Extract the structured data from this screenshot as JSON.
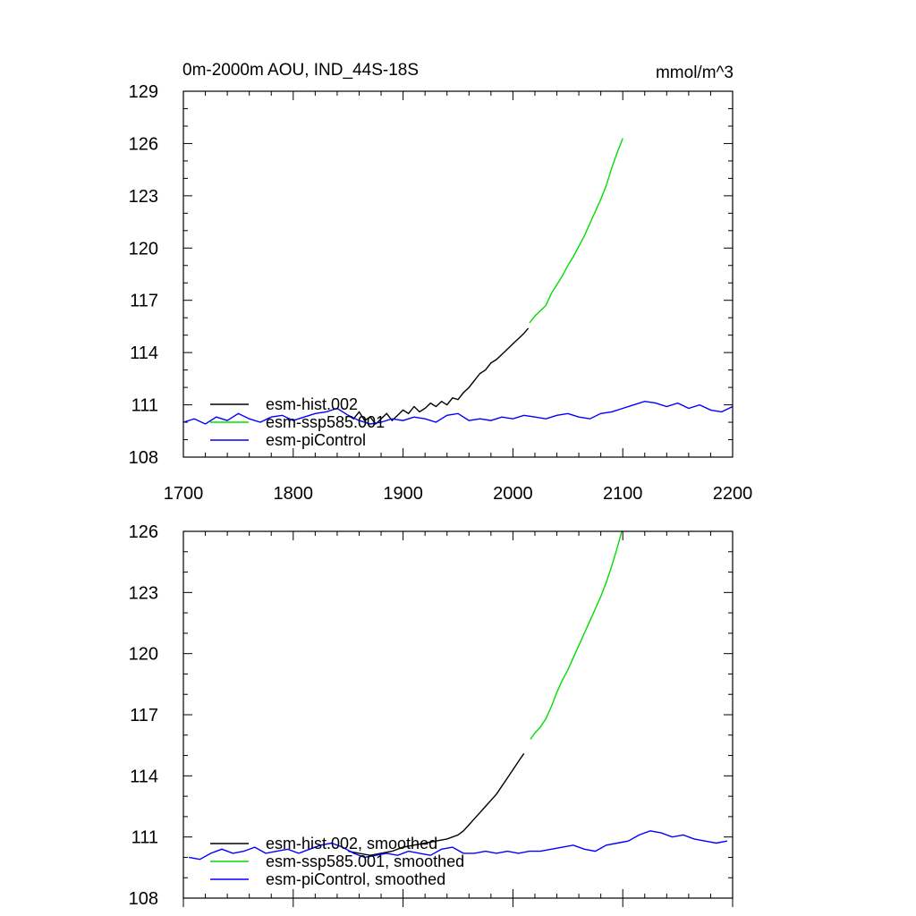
{
  "chart_data": [
    {
      "type": "line",
      "title": "0m-2000m AOU, IND_44S-18S",
      "units": "mmol/m^3",
      "xlim": [
        1700,
        2200
      ],
      "ylim": [
        108,
        129
      ],
      "xticks": [
        "1700",
        "1800",
        "1900",
        "2000",
        "2100",
        "2200"
      ],
      "yticks": [
        "108",
        "111",
        "114",
        "117",
        "120",
        "123",
        "126",
        "129"
      ],
      "legend_position": "lower-left",
      "series": [
        {
          "name": "esm-hist.002",
          "color": "#000000",
          "x": [
            1850,
            1855,
            1860,
            1865,
            1870,
            1875,
            1880,
            1885,
            1890,
            1895,
            1900,
            1905,
            1910,
            1915,
            1920,
            1925,
            1930,
            1935,
            1940,
            1945,
            1950,
            1955,
            1960,
            1965,
            1970,
            1975,
            1980,
            1985,
            1990,
            1995,
            2000,
            2005,
            2010,
            2014
          ],
          "y": [
            110.4,
            110.2,
            110.6,
            110.1,
            110.3,
            109.9,
            110.2,
            110.5,
            110.1,
            110.4,
            110.7,
            110.5,
            110.9,
            110.6,
            110.8,
            111.1,
            110.9,
            111.2,
            111.0,
            111.4,
            111.3,
            111.7,
            112.0,
            112.4,
            112.8,
            113.0,
            113.4,
            113.6,
            113.9,
            114.2,
            114.5,
            114.8,
            115.1,
            115.4
          ]
        },
        {
          "name": "esm-ssp585.001",
          "color": "#00dd00",
          "x": [
            2015,
            2020,
            2025,
            2030,
            2035,
            2040,
            2045,
            2050,
            2055,
            2060,
            2065,
            2070,
            2075,
            2080,
            2085,
            2090,
            2095,
            2100
          ],
          "y": [
            115.7,
            116.1,
            116.4,
            116.7,
            117.4,
            117.9,
            118.4,
            119.0,
            119.5,
            120.1,
            120.7,
            121.4,
            122.1,
            122.8,
            123.6,
            124.6,
            125.5,
            126.3
          ]
        },
        {
          "name": "esm-piControl",
          "color": "#0000ff",
          "x": [
            1700,
            1710,
            1720,
            1730,
            1740,
            1750,
            1760,
            1770,
            1780,
            1790,
            1800,
            1810,
            1820,
            1830,
            1840,
            1850,
            1860,
            1870,
            1880,
            1890,
            1900,
            1910,
            1920,
            1930,
            1940,
            1950,
            1960,
            1970,
            1980,
            1990,
            2000,
            2010,
            2020,
            2030,
            2040,
            2050,
            2060,
            2070,
            2080,
            2090,
            2100,
            2110,
            2120,
            2130,
            2140,
            2150,
            2160,
            2170,
            2180,
            2190,
            2200
          ],
          "y": [
            110.0,
            110.2,
            109.9,
            110.3,
            110.1,
            110.5,
            110.2,
            110.0,
            110.3,
            110.4,
            110.1,
            110.3,
            110.5,
            110.6,
            110.8,
            110.4,
            110.1,
            109.9,
            110.0,
            110.2,
            110.1,
            110.3,
            110.2,
            110.0,
            110.4,
            110.5,
            110.1,
            110.2,
            110.1,
            110.3,
            110.2,
            110.4,
            110.3,
            110.2,
            110.4,
            110.5,
            110.3,
            110.2,
            110.5,
            110.6,
            110.8,
            111.0,
            111.2,
            111.1,
            110.9,
            111.1,
            110.8,
            111.0,
            110.7,
            110.6,
            110.9
          ]
        }
      ]
    },
    {
      "type": "line",
      "xlim": [
        1700,
        2200
      ],
      "ylim": [
        108,
        126
      ],
      "yticks": [
        "108",
        "111",
        "114",
        "117",
        "120",
        "123",
        "126"
      ],
      "legend_position": "lower-left",
      "series": [
        {
          "name": "esm-hist.002, smoothed",
          "color": "#000000",
          "x": [
            1850,
            1860,
            1870,
            1880,
            1890,
            1900,
            1910,
            1920,
            1930,
            1940,
            1950,
            1955,
            1960,
            1965,
            1970,
            1975,
            1980,
            1985,
            1990,
            1995,
            2000,
            2005,
            2010
          ],
          "y": [
            110.3,
            110.2,
            110.1,
            110.2,
            110.3,
            110.5,
            110.6,
            110.7,
            110.8,
            110.9,
            111.1,
            111.3,
            111.6,
            111.9,
            112.2,
            112.5,
            112.8,
            113.1,
            113.5,
            113.9,
            114.3,
            114.7,
            115.1
          ]
        },
        {
          "name": "esm-ssp585.001, smoothed",
          "color": "#00dd00",
          "x": [
            2016,
            2020,
            2025,
            2030,
            2035,
            2040,
            2045,
            2050,
            2055,
            2060,
            2065,
            2070,
            2075,
            2080,
            2085,
            2090,
            2095,
            2099
          ],
          "y": [
            115.8,
            116.1,
            116.4,
            116.8,
            117.4,
            118.1,
            118.7,
            119.2,
            119.8,
            120.4,
            121.0,
            121.6,
            122.2,
            122.8,
            123.5,
            124.3,
            125.2,
            126.0
          ]
        },
        {
          "name": "esm-piControl, smoothed",
          "color": "#0000ff",
          "x": [
            1705,
            1715,
            1725,
            1735,
            1745,
            1755,
            1765,
            1775,
            1785,
            1795,
            1805,
            1815,
            1825,
            1835,
            1845,
            1855,
            1865,
            1875,
            1885,
            1895,
            1905,
            1915,
            1925,
            1935,
            1945,
            1955,
            1965,
            1975,
            1985,
            1995,
            2005,
            2015,
            2025,
            2035,
            2045,
            2055,
            2065,
            2075,
            2085,
            2095,
            2105,
            2115,
            2125,
            2135,
            2145,
            2155,
            2165,
            2175,
            2185,
            2195
          ],
          "y": [
            110.0,
            109.9,
            110.2,
            110.4,
            110.2,
            110.3,
            110.5,
            110.2,
            110.3,
            110.4,
            110.2,
            110.4,
            110.6,
            110.7,
            110.5,
            110.2,
            110.0,
            110.1,
            110.2,
            110.1,
            110.3,
            110.2,
            110.1,
            110.4,
            110.5,
            110.2,
            110.2,
            110.3,
            110.2,
            110.3,
            110.2,
            110.3,
            110.3,
            110.4,
            110.5,
            110.6,
            110.4,
            110.3,
            110.6,
            110.7,
            110.8,
            111.1,
            111.3,
            111.2,
            111.0,
            111.1,
            110.9,
            110.8,
            110.7,
            110.8
          ]
        }
      ]
    }
  ]
}
